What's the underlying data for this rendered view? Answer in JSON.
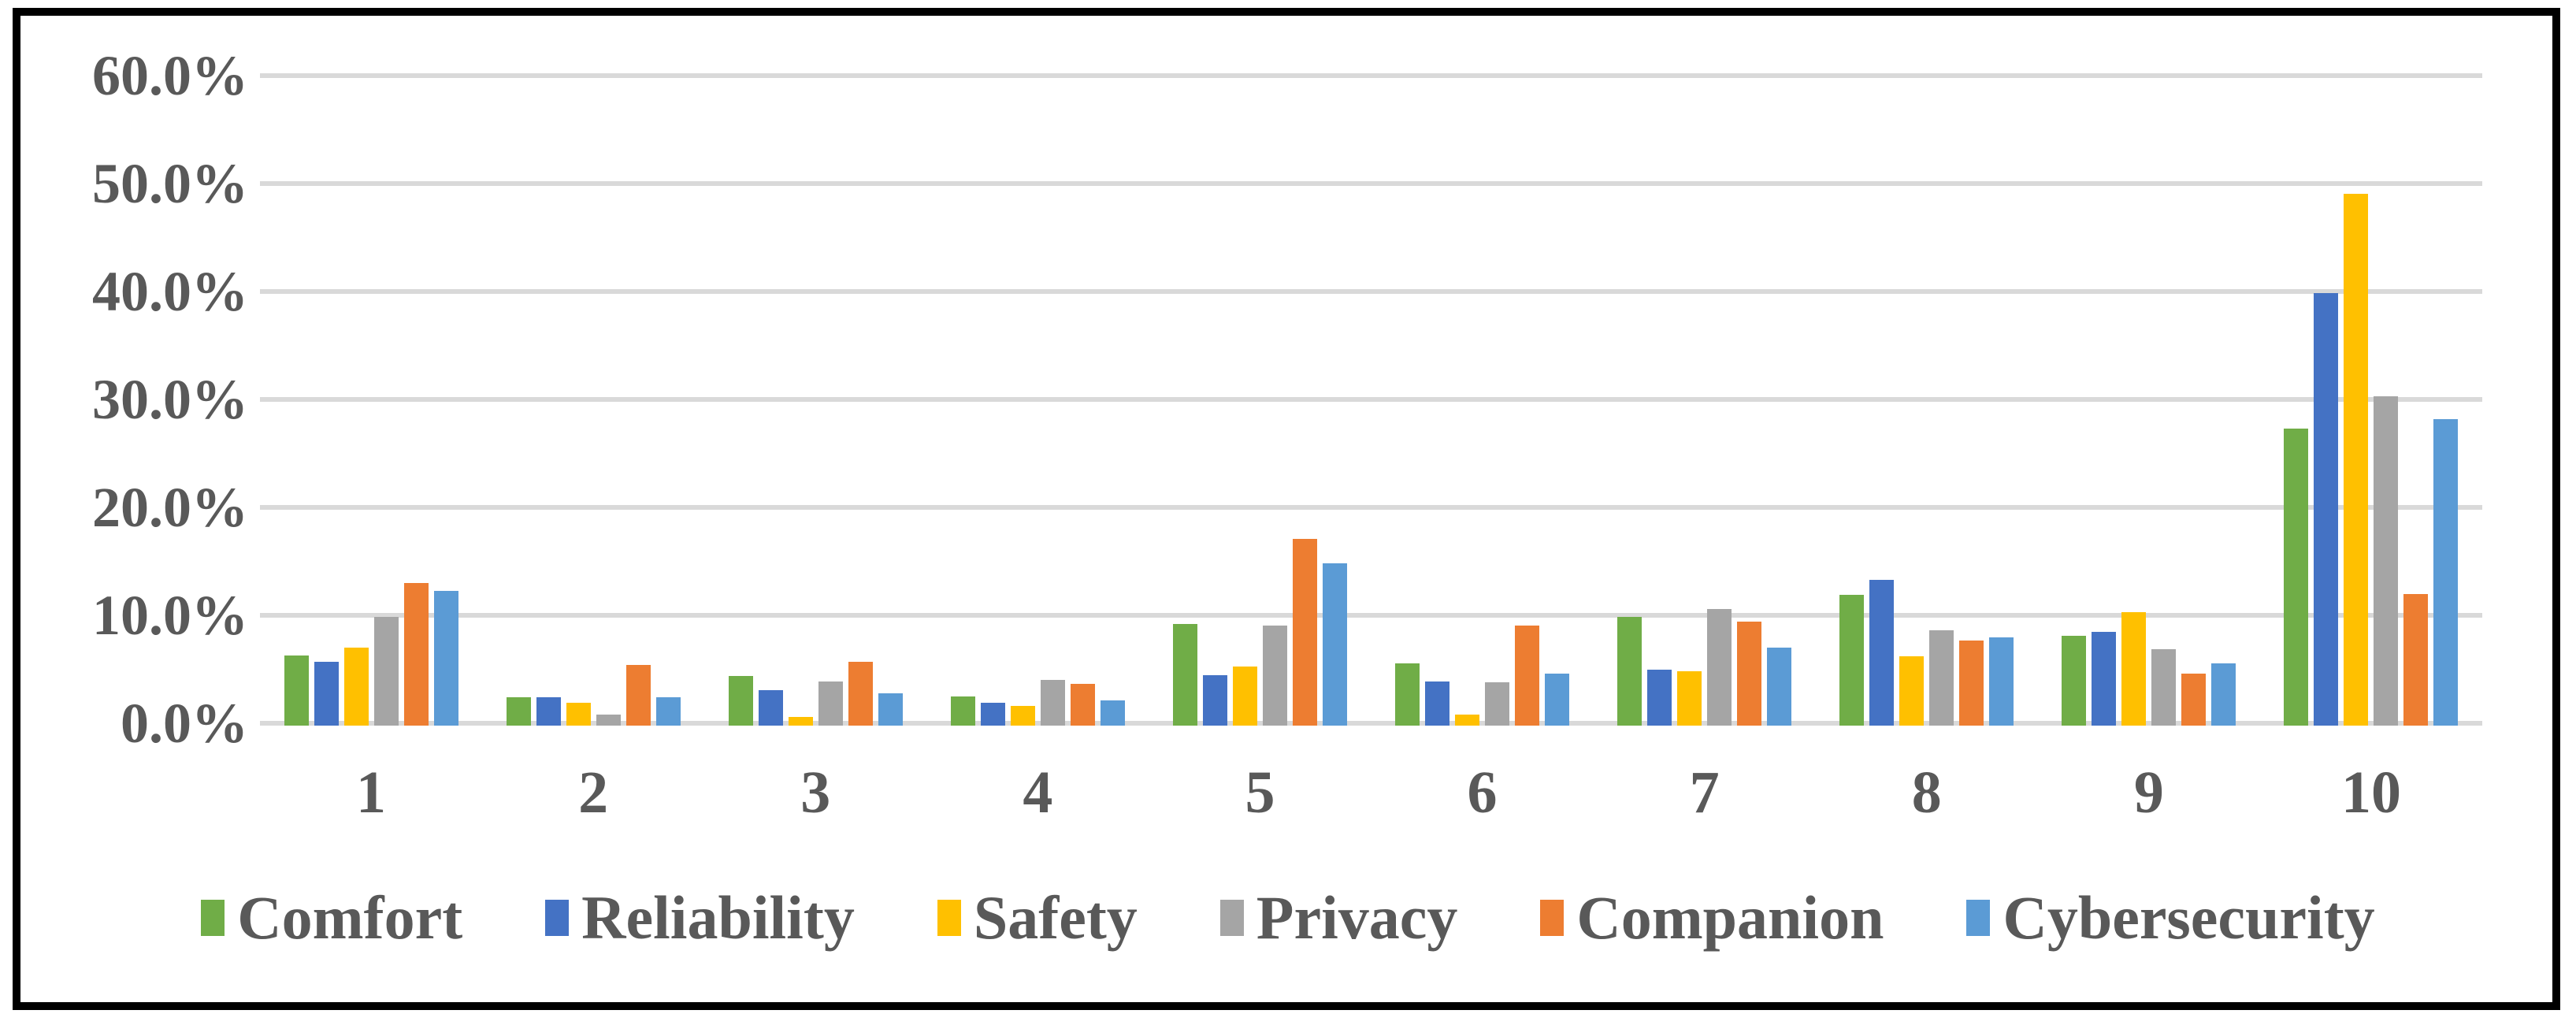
{
  "figure": {
    "background": "#FFFFFF",
    "border_color": "#000000"
  },
  "colors": {
    "gridline": "#D9D9D9",
    "tick_label": "#595959",
    "legend_label": "#595959"
  },
  "y_axis": {
    "min": 0,
    "max": 60,
    "step": 10,
    "tick_labels": [
      "60.0%",
      "50.0%",
      "40.0%",
      "30.0%",
      "20.0%",
      "10.0%",
      "0.0%"
    ]
  },
  "x_axis": {
    "tick_labels": [
      "1",
      "2",
      "3",
      "4",
      "5",
      "6",
      "7",
      "8",
      "9",
      "10"
    ]
  },
  "legend": {
    "position": "bottom",
    "items": [
      "Comfort",
      "Reliability",
      "Safety",
      "Privacy",
      "Companion",
      "Cybersecurity"
    ]
  },
  "chart_data": {
    "type": "bar",
    "title": "",
    "xlabel": "",
    "ylabel": "",
    "ylim": [
      0,
      60
    ],
    "y_tick_format": "0.0%",
    "grid": "horizontal",
    "legend_position": "bottom",
    "categories": [
      "1",
      "2",
      "3",
      "4",
      "5",
      "6",
      "7",
      "8",
      "9",
      "10"
    ],
    "series": [
      {
        "name": "Comfort",
        "color": "#70AD47",
        "values": [
          6.5,
          2.6,
          4.6,
          2.7,
          9.4,
          5.8,
          10.1,
          12.1,
          8.3,
          27.5
        ]
      },
      {
        "name": "Reliability",
        "color": "#4472C4",
        "values": [
          5.9,
          2.6,
          3.3,
          2.1,
          4.7,
          4.1,
          5.2,
          13.5,
          8.7,
          40.1
        ]
      },
      {
        "name": "Safety",
        "color": "#FFC000",
        "values": [
          7.2,
          2.1,
          0.8,
          1.8,
          5.5,
          1.0,
          5.0,
          6.4,
          10.5,
          49.3
        ]
      },
      {
        "name": "Privacy",
        "color": "#A5A5A5",
        "values": [
          10.1,
          1.0,
          4.1,
          4.2,
          9.3,
          4.0,
          10.8,
          8.8,
          7.1,
          30.5
        ]
      },
      {
        "name": "Companion",
        "color": "#ED7D31",
        "values": [
          13.2,
          5.6,
          5.9,
          3.9,
          17.3,
          9.3,
          9.6,
          7.9,
          4.8,
          12.2
        ]
      },
      {
        "name": "Cybersecurity",
        "color": "#5B9BD5",
        "values": [
          12.5,
          2.6,
          3.0,
          2.3,
          15.0,
          4.8,
          7.2,
          8.2,
          5.8,
          28.4
        ]
      }
    ]
  }
}
